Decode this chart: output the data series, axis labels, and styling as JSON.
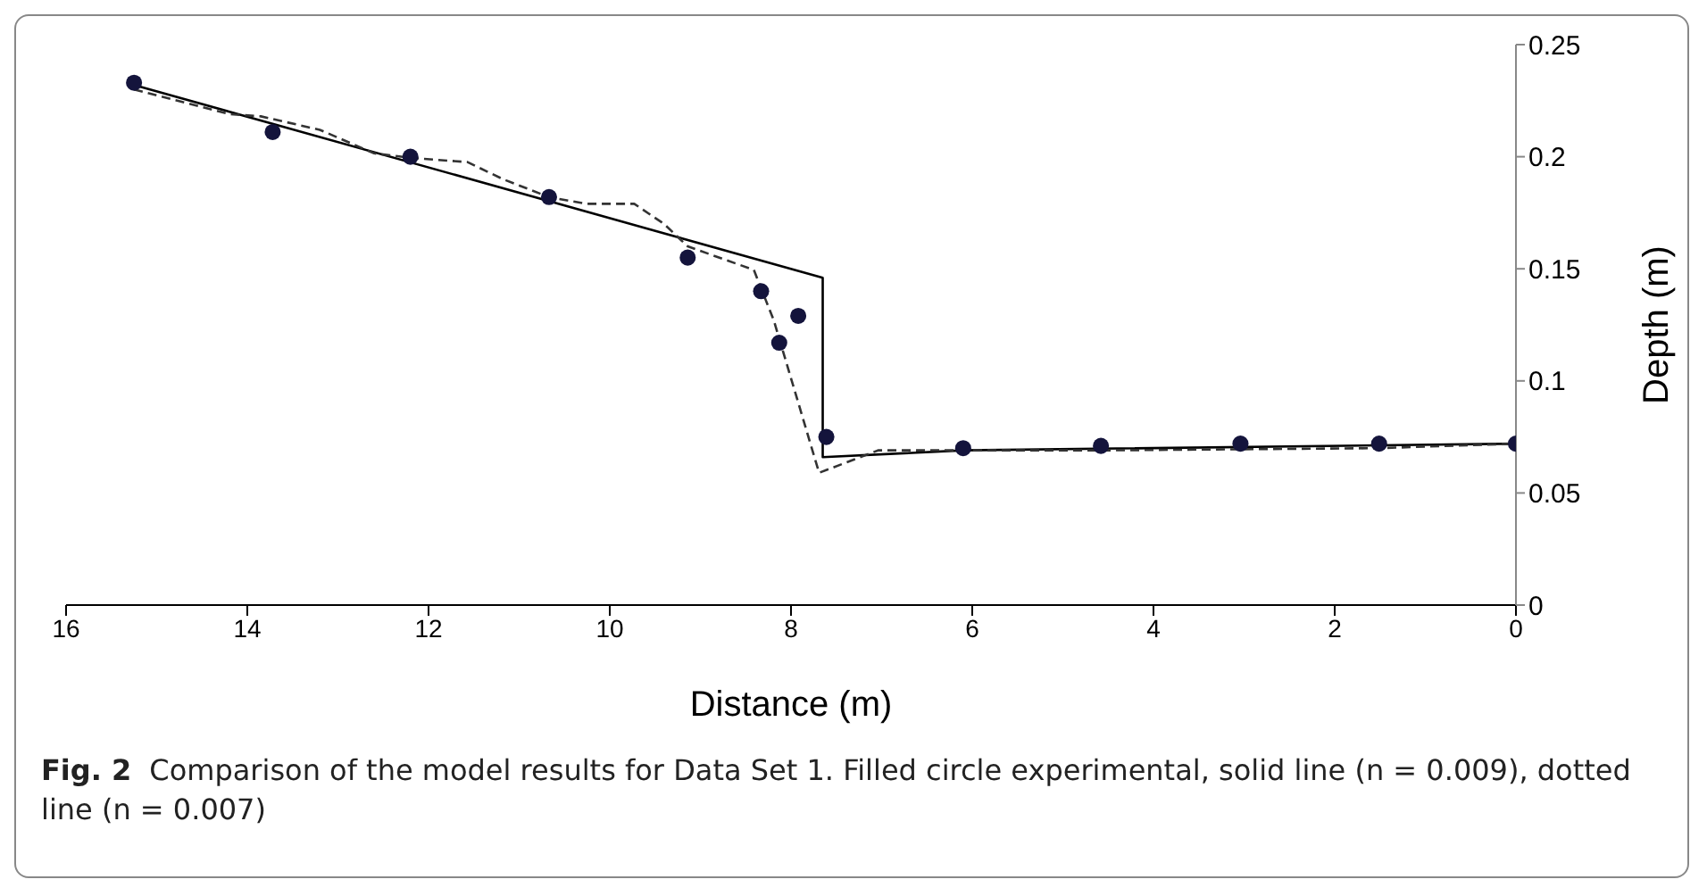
{
  "chart_data": {
    "type": "line",
    "xlabel": "Distance (m)",
    "ylabel": "Depth (m)",
    "xlim": [
      16,
      0
    ],
    "xticks": [
      16,
      14,
      12,
      10,
      8,
      6,
      4,
      2,
      0
    ],
    "ylim": [
      0,
      0.25
    ],
    "yticks": [
      0,
      0.05,
      0.1,
      0.15,
      0.2,
      0.25
    ],
    "grid": false,
    "legend": false,
    "series": [
      {
        "type": "scatter",
        "marker": "circle",
        "color": "#14143c",
        "x": [
          15.25,
          13.72,
          12.2,
          10.67,
          9.14,
          8.33,
          8.13,
          7.92,
          7.61,
          6.1,
          4.58,
          3.04,
          1.51,
          0
        ],
        "values": [
          0.233,
          0.211,
          0.2,
          0.182,
          0.155,
          0.14,
          0.117,
          0.129,
          0.075,
          0.07,
          0.071,
          0.072,
          0.072,
          0.072
        ]
      },
      {
        "line_style": "solid",
        "color": "#000000",
        "x": [
          15.25,
          7.65,
          7.65,
          6.1,
          0
        ],
        "values": [
          0.232,
          0.146,
          0.066,
          0.069,
          0.072
        ]
      },
      {
        "line_style": "dashed",
        "color": "#333333",
        "x": [
          15.25,
          14.2,
          13.85,
          13.2,
          12.6,
          12.2,
          11.57,
          11.18,
          10.67,
          10.26,
          9.73,
          9.4,
          9.14,
          8.41,
          8.19,
          7.69,
          7.3,
          7.04,
          4.58,
          1.51,
          0
        ],
        "values": [
          0.23,
          0.219,
          0.218,
          0.212,
          0.2015,
          0.1995,
          0.1976,
          0.19,
          0.182,
          0.179,
          0.179,
          0.17,
          0.16,
          0.1495,
          0.127,
          0.059,
          0.065,
          0.069,
          0.069,
          0.07,
          0.072
        ]
      }
    ],
    "annotations": [
      "Fig. 2",
      "Comparison of the model results for Data Set 1. Filled circle experimental, solid line (n = 0.009), dotted line (n = 0.007)"
    ]
  }
}
